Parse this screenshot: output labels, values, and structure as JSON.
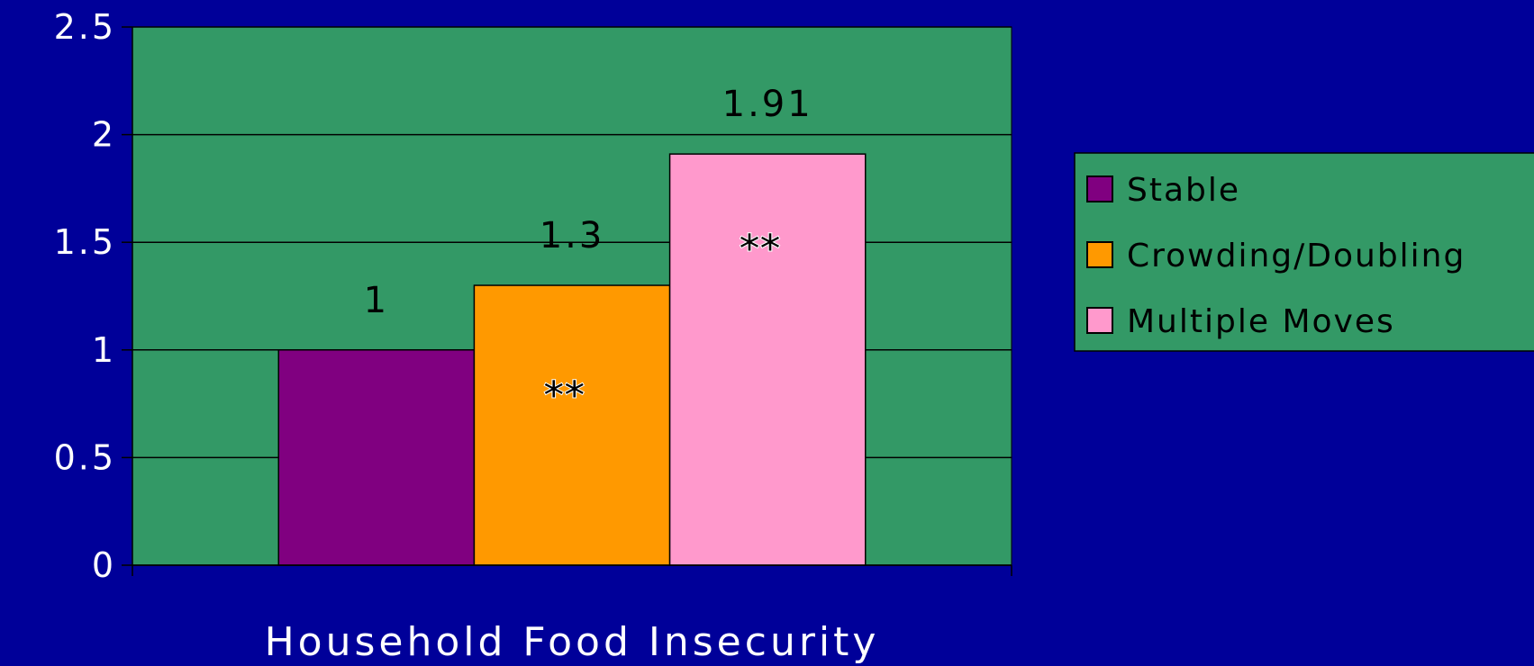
{
  "chart_data": {
    "type": "bar",
    "title": "",
    "xlabel": "Household Food Insecurity",
    "ylabel": "",
    "ylim": [
      0,
      2.5
    ],
    "yticks": [
      "0",
      "0.5",
      "1",
      "1.5",
      "2",
      "2.5"
    ],
    "grid": true,
    "legend_position": "right",
    "categories": [
      "Household Food Insecurity"
    ],
    "series": [
      {
        "name": "Stable",
        "values": [
          1
        ],
        "label": "1",
        "significance": "",
        "color": "#800080"
      },
      {
        "name": "Crowding/Doubling",
        "values": [
          1.3
        ],
        "label": "1.3",
        "significance": "**",
        "color": "#FF9900"
      },
      {
        "name": "Multiple Moves",
        "values": [
          1.91
        ],
        "label": "1.91",
        "significance": "**",
        "color": "#FF99CC"
      }
    ],
    "colors": {
      "background": "#000099",
      "plot_area": "#339966"
    }
  }
}
